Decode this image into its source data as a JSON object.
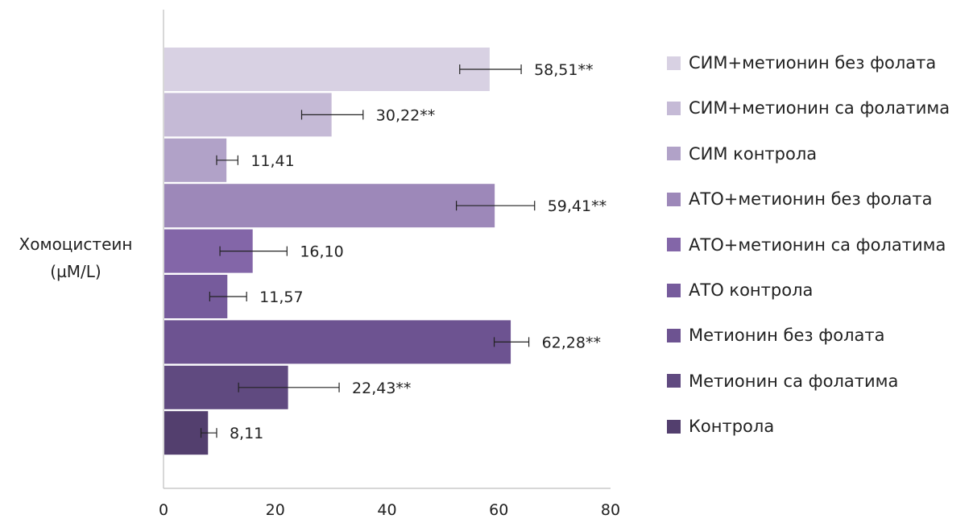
{
  "chart_data": {
    "type": "bar",
    "orientation": "horizontal",
    "title": "",
    "ylabel_lines": [
      "Хомоцистеин",
      "(µM/L)"
    ],
    "xlim": [
      0,
      80
    ],
    "x_ticks": [
      "0",
      "20",
      "40",
      "60",
      "80"
    ],
    "grid": false,
    "legend_position": "right",
    "categories": [
      "СИМ+метионин без фолата",
      "СИМ+метионин са фолатима",
      "СИМ контрола",
      "АТО+метионин без фолата",
      "АТО+метионин са фолатима",
      "АТО контрола",
      "Метионин без фолата",
      "Метионин са фолатима",
      "Контрола"
    ],
    "values": [
      58.51,
      30.22,
      11.41,
      59.41,
      16.1,
      11.57,
      62.28,
      22.43,
      8.11
    ],
    "errors": [
      5.5,
      5.5,
      1.9,
      7.0,
      6.0,
      3.3,
      3.1,
      9.0,
      1.4
    ],
    "data_labels": [
      "58,51**",
      "30,22**",
      "11,41",
      "59,41**",
      "16,10",
      "11,57",
      "62,28**",
      "22,43**",
      "8,11"
    ],
    "colors": [
      "#d8d1e3",
      "#c5bad6",
      "#b1a2c8",
      "#9d88b9",
      "#8366a8",
      "#765b9c",
      "#6d5391",
      "#604a80",
      "#533f6e"
    ]
  }
}
